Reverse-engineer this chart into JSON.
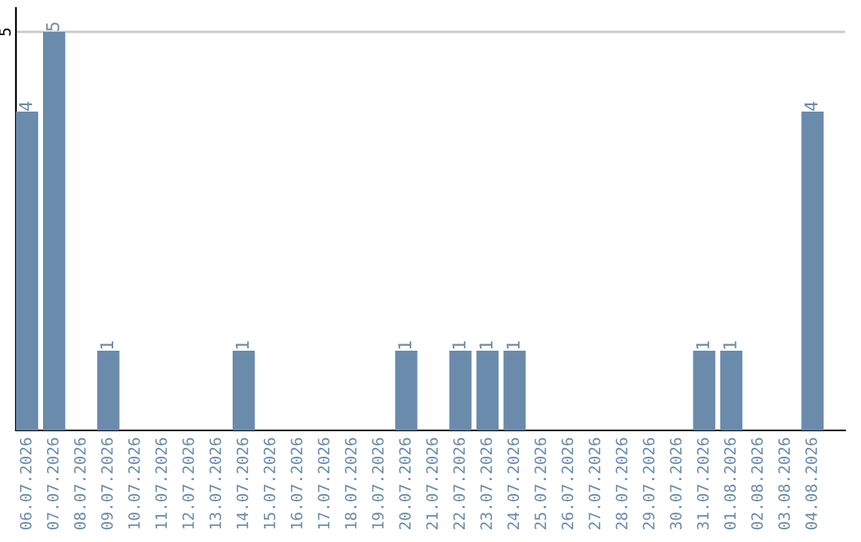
{
  "chart_data": {
    "type": "bar",
    "categories": [
      "06.07.2026",
      "07.07.2026",
      "08.07.2026",
      "09.07.2026",
      "10.07.2026",
      "11.07.2026",
      "12.07.2026",
      "13.07.2026",
      "14.07.2026",
      "15.07.2026",
      "16.07.2026",
      "17.07.2026",
      "18.07.2026",
      "19.07.2026",
      "20.07.2026",
      "21.07.2026",
      "22.07.2026",
      "23.07.2026",
      "24.07.2026",
      "25.07.2026",
      "26.07.2026",
      "27.07.2026",
      "28.07.2026",
      "29.07.2026",
      "30.07.2026",
      "31.07.2026",
      "01.08.2026",
      "02.08.2026",
      "03.08.2026",
      "04.08.2026"
    ],
    "values": [
      4,
      5,
      0,
      1,
      0,
      0,
      0,
      0,
      1,
      0,
      0,
      0,
      0,
      0,
      1,
      0,
      1,
      1,
      1,
      0,
      0,
      0,
      0,
      0,
      0,
      1,
      1,
      0,
      0,
      4
    ],
    "value_labels": [
      "4",
      "5",
      null,
      "1",
      null,
      null,
      null,
      null,
      "1",
      null,
      null,
      null,
      null,
      null,
      "1",
      null,
      "1",
      "1",
      "1",
      null,
      null,
      null,
      null,
      null,
      null,
      "1",
      "1",
      null,
      null,
      "4"
    ],
    "color": "#6a8bab",
    "ylim": [
      0,
      5.3
    ],
    "yticks": [
      5
    ],
    "grid": "y",
    "legend": false
  }
}
